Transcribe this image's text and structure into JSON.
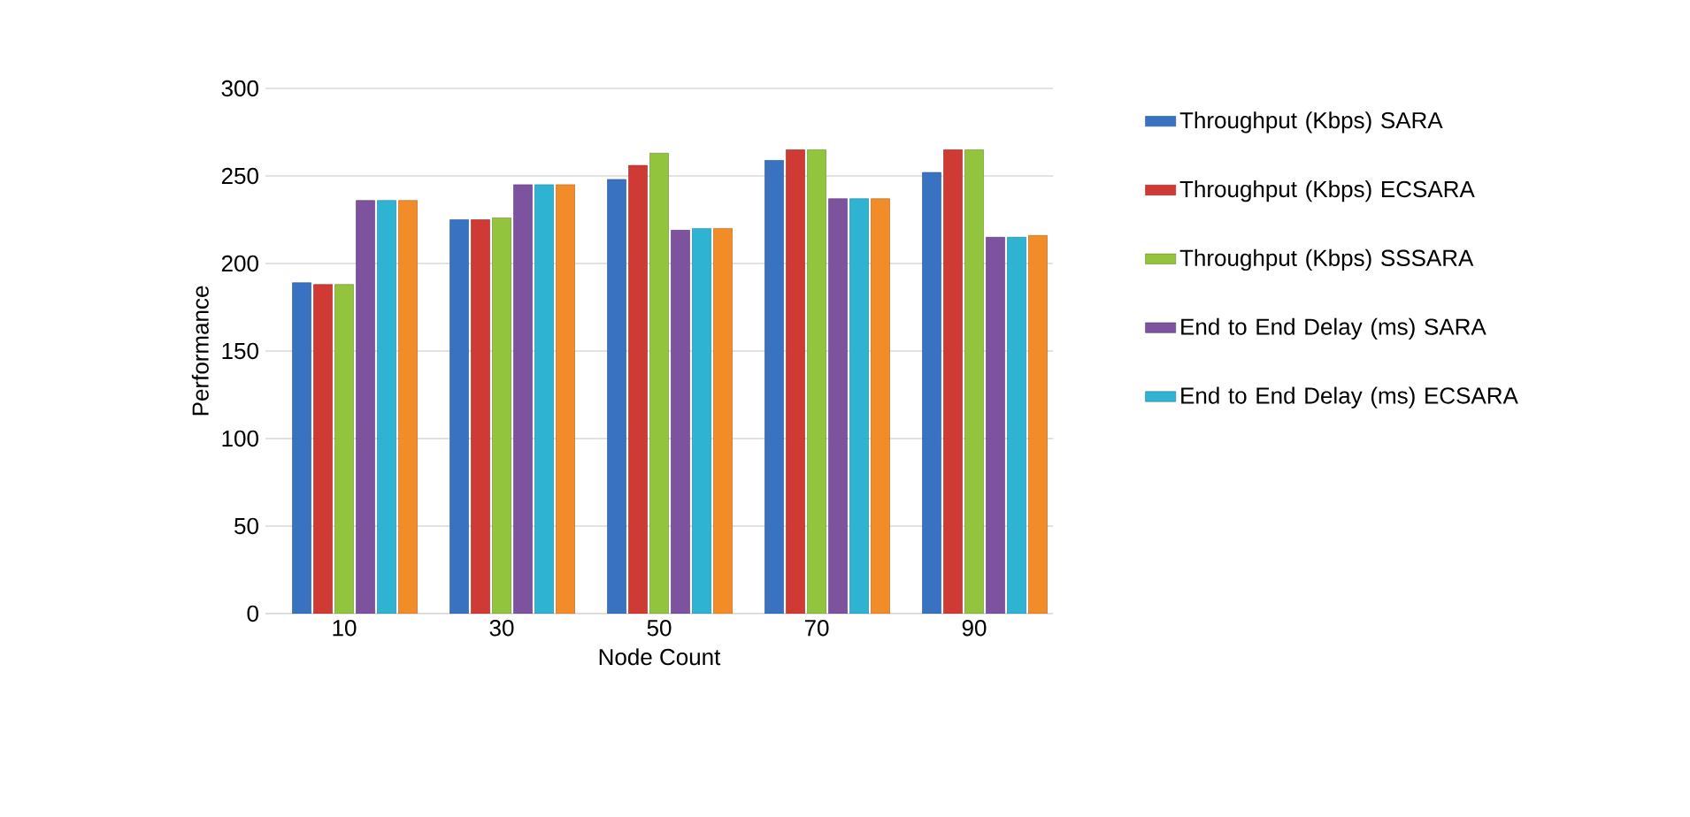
{
  "chart_data": {
    "type": "bar",
    "xlabel": "Node Count",
    "ylabel": "Performance",
    "categories": [
      "10",
      "30",
      "50",
      "70",
      "90"
    ],
    "series": [
      {
        "name": "Throughput (Kbps) SARA",
        "color": "#3a72c2",
        "values": [
          189,
          225,
          248,
          259,
          252
        ]
      },
      {
        "name": "Throughput (Kbps) ECSARA",
        "color": "#d03a34",
        "values": [
          188,
          225,
          256,
          265,
          265
        ]
      },
      {
        "name": "Throughput (Kbps) SSSARA",
        "color": "#92c43e",
        "values": [
          188,
          226,
          263,
          265,
          265
        ]
      },
      {
        "name": "End to End Delay (ms) SARA",
        "color": "#7d529f",
        "values": [
          236,
          245,
          219,
          237,
          215
        ]
      },
      {
        "name": "End to End Delay (ms) ECSARA",
        "color": "#2fb3d3",
        "values": [
          236,
          245,
          220,
          237,
          215
        ]
      },
      {
        "color": "#f28c28",
        "values": [
          236,
          245,
          220,
          237,
          216
        ]
      }
    ],
    "ylim": [
      0,
      300
    ],
    "yticks": [
      0,
      50,
      100,
      150,
      200,
      250,
      300
    ],
    "grid": "y",
    "legend": "right"
  }
}
